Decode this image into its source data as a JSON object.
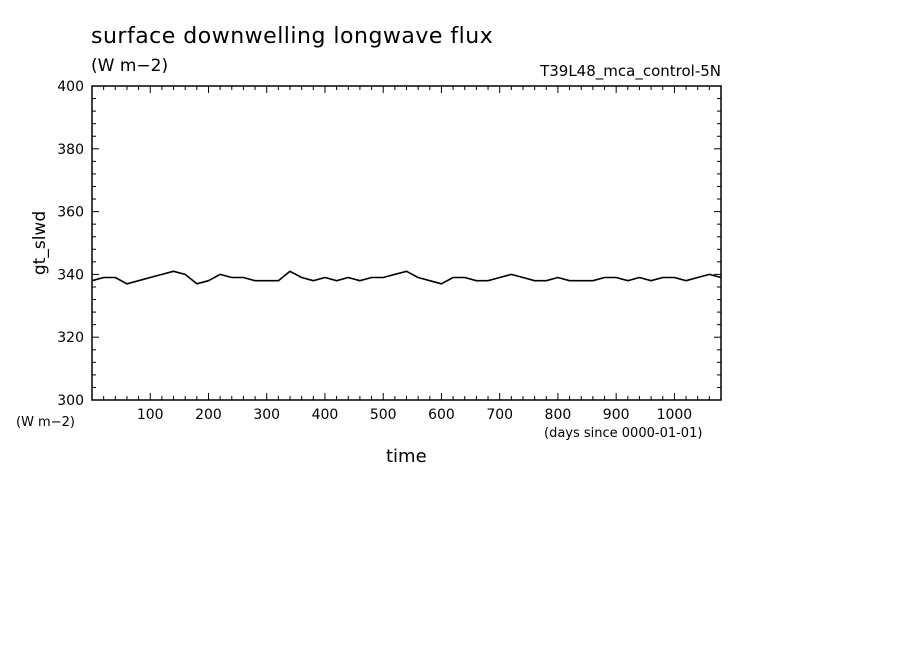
{
  "chart_data": {
    "type": "line",
    "title": "surface downwelling longwave flux",
    "subtitle": "(W m−2)",
    "run_label": "T39L48_mca_control-5N",
    "xlabel": "time",
    "xunit": "(days since 0000-01-01)",
    "ylabel": "gt_slwd",
    "yunit": "(W m−2)",
    "xlim": [
      0,
      1080
    ],
    "ylim": [
      300,
      400
    ],
    "xticks": [
      100,
      200,
      300,
      400,
      500,
      600,
      700,
      800,
      900,
      1000
    ],
    "yticks": [
      300,
      320,
      340,
      360,
      380,
      400
    ],
    "grid": false,
    "series": [
      {
        "x": [
          0,
          20,
          40,
          60,
          80,
          100,
          120,
          140,
          160,
          180,
          200,
          220,
          240,
          260,
          280,
          300,
          320,
          340,
          360,
          380,
          400,
          420,
          440,
          460,
          480,
          500,
          520,
          540,
          560,
          580,
          600,
          620,
          640,
          660,
          680,
          700,
          720,
          740,
          760,
          780,
          800,
          820,
          840,
          860,
          880,
          900,
          920,
          940,
          960,
          980,
          1000,
          1020,
          1040,
          1060,
          1080
        ],
        "y": [
          338,
          339,
          339,
          337,
          338,
          339,
          340,
          341,
          340,
          337,
          338,
          340,
          339,
          339,
          338,
          338,
          338,
          341,
          339,
          338,
          339,
          338,
          339,
          338,
          339,
          339,
          340,
          341,
          339,
          338,
          337,
          339,
          339,
          338,
          338,
          339,
          340,
          339,
          338,
          338,
          339,
          338,
          338,
          338,
          339,
          339,
          338,
          339,
          338,
          339,
          339,
          338,
          339,
          340,
          339
        ]
      }
    ]
  }
}
